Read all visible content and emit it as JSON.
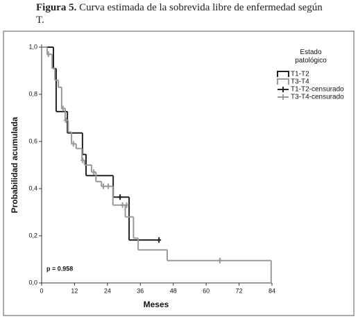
{
  "chart_data": {
    "type": "step",
    "figure_label": "Figura 5.",
    "title": "Curva estimada de la sobrevida libre de enfermedad según T.",
    "x_label": "Meses",
    "y_label": "Probabilidad acumulada",
    "annotation": "p = 0.958",
    "legend_title": "Estado patológico",
    "legend": "right",
    "xlim": [
      0,
      84
    ],
    "xticks": [
      0,
      12,
      24,
      36,
      48,
      60,
      72,
      84
    ],
    "ylim": [
      0,
      1
    ],
    "yticks": [
      {
        "value": 0,
        "label": "0,0"
      },
      {
        "value": 0.2,
        "label": "0,2"
      },
      {
        "value": 0.4,
        "label": "0,4"
      },
      {
        "value": 0.6,
        "label": "0,6"
      },
      {
        "value": 0.8,
        "label": "0,8"
      },
      {
        "value": 1,
        "label": "1,0"
      }
    ],
    "series": [
      {
        "name": "T1-T2",
        "color": "#222222",
        "style": "step",
        "x": [
          0,
          4.3,
          5.3,
          9.4,
          14.9,
          16.2,
          26.1,
          31.9,
          42.8
        ],
        "values": [
          1.0,
          0.909,
          0.727,
          0.636,
          0.545,
          0.455,
          0.364,
          0.182,
          0.182
        ]
      },
      {
        "name": "T3-T4",
        "color": "#999999",
        "style": "step",
        "x": [
          0,
          2.0,
          3.8,
          4.8,
          6.1,
          7.3,
          8.6,
          9.7,
          10.9,
          12.6,
          14.7,
          15.7,
          18.2,
          19.8,
          21.8,
          26.0,
          30.5,
          33.5,
          35.2,
          45.8,
          83.7
        ],
        "values": [
          1.0,
          0.97,
          0.91,
          0.86,
          0.83,
          0.74,
          0.69,
          0.64,
          0.59,
          0.57,
          0.52,
          0.5,
          0.47,
          0.43,
          0.41,
          0.33,
          0.28,
          0.19,
          0.14,
          0.095,
          0
        ]
      },
      {
        "name": "T1-T2-censurado",
        "color": "#222222",
        "style": "censored",
        "x": [
          28.6,
          42.8
        ],
        "values": [
          0.364,
          0.182
        ]
      },
      {
        "name": "T3-T4-censurado",
        "color": "#999999",
        "style": "censored",
        "x": [
          2.5,
          7.8,
          8.8,
          11.6,
          15.0,
          19.0,
          22.5,
          24.3,
          29.5,
          31.0,
          65.0
        ],
        "values": [
          0.97,
          0.74,
          0.69,
          0.59,
          0.52,
          0.47,
          0.41,
          0.41,
          0.33,
          0.33,
          0.095
        ]
      }
    ]
  }
}
